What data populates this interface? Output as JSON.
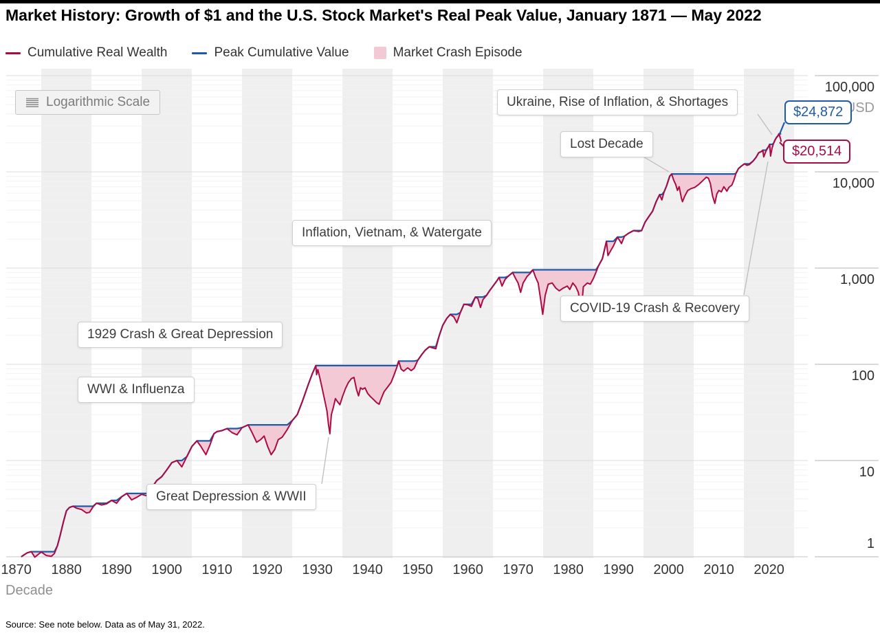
{
  "header": {
    "title": "Market History: Growth of $1 and the U.S. Stock Market's Real Peak Value, January 1871 — May 2022"
  },
  "legend": {
    "items": [
      {
        "label": "Cumulative Real Wealth",
        "swatch": "line",
        "color": "#ab0b45"
      },
      {
        "label": "Peak Cumulative Value",
        "swatch": "line",
        "color": "#1f5aa8"
      },
      {
        "label": "Market Crash Episode",
        "swatch": "area",
        "color": "#f3c9d5"
      }
    ]
  },
  "badge": {
    "label": "Logarithmic Scale"
  },
  "annotations": [
    {
      "id": "ukraine",
      "label": "Ukraine, Rise of Inflation, & Shortages"
    },
    {
      "id": "lost-decade",
      "label": "Lost Decade"
    },
    {
      "id": "inflation-vietnam",
      "label": "Inflation, Vietnam, & Watergate"
    },
    {
      "id": "covid",
      "label": "COVID-19 Crash & Recovery"
    },
    {
      "id": "crash-1929",
      "label": "1929 Crash & Great Depression"
    },
    {
      "id": "wwi-influenza",
      "label": "WWI & Influenza"
    },
    {
      "id": "depression-wwii",
      "label": "Great Depression & WWII"
    }
  ],
  "callouts": {
    "peak_value": "$24,872",
    "current_value": "$20,514"
  },
  "y_axis": {
    "unit": "USD",
    "tick_labels": [
      "100,000",
      "10,000",
      "1,000",
      "100",
      "10",
      "1"
    ]
  },
  "x_axis": {
    "label": "Decade",
    "tick_labels": [
      "1870",
      "1880",
      "1890",
      "1900",
      "1910",
      "1920",
      "1930",
      "1940",
      "1950",
      "1960",
      "1970",
      "1980",
      "1990",
      "2000",
      "2010",
      "2020"
    ]
  },
  "footer": {
    "source": "Source: See note below. Data as of May 31, 2022."
  },
  "colors": {
    "wealth_line": "#ab0b45",
    "peak_line": "#1f5aa8",
    "crash_fill": "#f3c9d5",
    "decade_band": "#efefef",
    "grid_major": "#dcdcdc",
    "grid_minor": "#f2f2f2",
    "right_tick": "#b5b5b5",
    "leader": "#bdbdbd"
  },
  "chart_data": {
    "type": "line",
    "title": "Market History: Growth of $1 and the U.S. Stock Market's Real Peak Value, January 1871 — May 2022",
    "x_label": "Decade",
    "x_ticks": [
      1870,
      1880,
      1890,
      1900,
      1910,
      1920,
      1930,
      1940,
      1950,
      1960,
      1970,
      1980,
      1990,
      2000,
      2010,
      2020
    ],
    "y_scale": "log",
    "y_unit": "USD",
    "y_ticks": [
      1,
      10,
      100,
      1000,
      10000,
      100000
    ],
    "x_range": [
      1871,
      2022.42
    ],
    "end_values": {
      "cumulative_real_wealth": 20514,
      "peak_cumulative_value": 24872
    },
    "event_labels": [
      "Ukraine, Rise of Inflation, & Shortages",
      "Lost Decade",
      "Inflation, Vietnam, & Watergate",
      "COVID-19 Crash & Recovery",
      "1929 Crash & Great Depression",
      "WWI & Influenza",
      "Great Depression & WWII"
    ],
    "shading": {
      "name": "Market Crash Episode",
      "definition": "area between running peak and wealth while wealth is below prior peak",
      "color": "#f3c9d5"
    },
    "series": [
      {
        "name": "Cumulative Real Wealth",
        "color": "#ab0b45",
        "x": [
          1871.0,
          1871.6,
          1872.2,
          1873.0,
          1873.7,
          1874.4,
          1875.0,
          1876.0,
          1877.0,
          1877.6,
          1878.2,
          1878.8,
          1879.4,
          1880.0,
          1880.6,
          1881.3,
          1882.0,
          1883.0,
          1884.0,
          1884.6,
          1885.3,
          1886.0,
          1887.0,
          1888.0,
          1889.0,
          1890.0,
          1891.0,
          1892.0,
          1893.0,
          1894.0,
          1895.0,
          1896.0,
          1897.0,
          1898.0,
          1899.0,
          1900.0,
          1901.0,
          1902.0,
          1903.0,
          1904.0,
          1905.0,
          1906.0,
          1906.8,
          1907.8,
          1908.6,
          1909.4,
          1910.0,
          1911.0,
          1912.0,
          1913.0,
          1914.0,
          1915.0,
          1916.2,
          1917.0,
          1917.9,
          1918.7,
          1919.4,
          1920.1,
          1920.8,
          1921.5,
          1922.2,
          1923.0,
          1924.0,
          1925.0,
          1926.0,
          1927.0,
          1928.2,
          1929.0,
          1929.7,
          1929.85,
          1930.1,
          1930.5,
          1930.9,
          1931.4,
          1931.9,
          1932.2,
          1932.5,
          1932.8,
          1933.2,
          1933.6,
          1934.0,
          1934.5,
          1935.0,
          1935.6,
          1936.2,
          1936.8,
          1937.3,
          1937.8,
          1938.2,
          1938.6,
          1939.0,
          1939.5,
          1940.0,
          1940.6,
          1941.2,
          1941.8,
          1942.3,
          1942.8,
          1943.3,
          1944.0,
          1944.7,
          1945.3,
          1945.9,
          1946.2,
          1946.7,
          1947.2,
          1948.0,
          1948.7,
          1949.3,
          1950.0,
          1950.8,
          1951.5,
          1952.3,
          1953.0,
          1953.6,
          1954.3,
          1955.0,
          1955.8,
          1956.5,
          1957.2,
          1957.8,
          1958.5,
          1959.2,
          1960.0,
          1960.7,
          1961.5,
          1962.0,
          1962.5,
          1963.0,
          1963.7,
          1964.4,
          1965.1,
          1965.8,
          1966.2,
          1966.8,
          1967.4,
          1968.0,
          1968.9,
          1969.5,
          1970.0,
          1970.5,
          1971.0,
          1971.8,
          1972.4,
          1972.95,
          1973.5,
          1974.0,
          1974.5,
          1974.9,
          1975.4,
          1976.0,
          1976.8,
          1977.5,
          1978.2,
          1979.0,
          1979.8,
          1980.3,
          1980.9,
          1981.5,
          1982.0,
          1982.6,
          1983.0,
          1983.8,
          1984.4,
          1985.0,
          1985.5,
          1986.0,
          1986.8,
          1987.6,
          1987.9,
          1988.4,
          1989.0,
          1989.8,
          1990.6,
          1991.2,
          1992.0,
          1993.0,
          1994.0,
          1994.6,
          1995.3,
          1996.0,
          1996.8,
          1997.5,
          1998.2,
          1998.65,
          1999.1,
          1999.6,
          2000.2,
          2000.6,
          2001.0,
          2001.4,
          2001.75,
          2002.1,
          2002.55,
          2002.75,
          2003.2,
          2003.8,
          2004.5,
          2005.2,
          2006.0,
          2006.8,
          2007.5,
          2007.9,
          2008.3,
          2008.75,
          2009.2,
          2009.6,
          2010.0,
          2010.5,
          2011.0,
          2011.6,
          2012.0,
          2012.6,
          2013.0,
          2013.4,
          2013.9,
          2014.5,
          2015.1,
          2015.6,
          2016.1,
          2016.8,
          2017.4,
          2017.95,
          2018.5,
          2018.75,
          2018.95,
          2019.4,
          2019.9,
          2020.12,
          2020.3,
          2020.6,
          2020.9,
          2021.2,
          2021.5,
          2021.75,
          2021.99,
          2022.15,
          2022.3,
          2022.42
        ],
        "values": [
          1.0,
          1.05,
          1.1,
          1.13,
          0.99,
          1.06,
          1.12,
          1.03,
          1.01,
          1.08,
          1.3,
          1.7,
          2.3,
          3.0,
          3.25,
          3.35,
          3.2,
          3.1,
          2.85,
          2.9,
          3.3,
          3.6,
          3.45,
          3.55,
          3.85,
          3.6,
          4.2,
          4.55,
          3.9,
          4.15,
          4.45,
          4.3,
          5.2,
          6.2,
          6.8,
          8.0,
          9.5,
          10.0,
          8.6,
          11.0,
          14.0,
          16.0,
          14.0,
          11.5,
          14.5,
          19.0,
          20.0,
          20.5,
          21.5,
          19.5,
          18.5,
          22.0,
          23.5,
          19.5,
          15.5,
          16.5,
          18.0,
          14.0,
          11.5,
          13.0,
          16.5,
          17.5,
          21.0,
          26.0,
          30.0,
          41.0,
          62.0,
          80.0,
          97.0,
          78.0,
          88.0,
          72.0,
          58.0,
          44.0,
          33.0,
          24.0,
          19.0,
          30.0,
          36.0,
          44.0,
          41.0,
          38.0,
          46.0,
          56.0,
          65.0,
          71.0,
          73.0,
          55.0,
          47.0,
          57.0,
          55.0,
          57.0,
          50.0,
          46.0,
          43.0,
          40.0,
          38.5,
          45.0,
          52.0,
          58.0,
          65.0,
          78.0,
          95.0,
          108.0,
          89.0,
          85.0,
          92.0,
          86.0,
          91.0,
          110.0,
          126.0,
          140.0,
          152.0,
          148.0,
          145.0,
          200.0,
          255.0,
          300.0,
          330.0,
          310.0,
          270.0,
          345.0,
          420.0,
          415.0,
          400.0,
          500.0,
          480.0,
          390.0,
          470.0,
          520.0,
          590.0,
          660.0,
          740.0,
          800.0,
          650.0,
          760.0,
          820.0,
          900.0,
          780.0,
          700.0,
          560.0,
          700.0,
          820.0,
          880.0,
          960.0,
          800.0,
          700.0,
          470.0,
          330.0,
          520.0,
          680.0,
          700.0,
          620.0,
          580.0,
          620.0,
          650.0,
          600.0,
          700.0,
          640.0,
          560.0,
          360.0,
          640.0,
          700.0,
          680.0,
          780.0,
          900.0,
          1050.0,
          1250.0,
          1900.0,
          1350.0,
          1500.0,
          1700.0,
          2100.0,
          1800.0,
          2150.0,
          2300.0,
          2450.0,
          2400.0,
          2450.0,
          3000.0,
          3400.0,
          3900.0,
          4900.0,
          5800.0,
          5100.0,
          6200.0,
          7200.0,
          9000.0,
          9500.0,
          8200.0,
          7400.0,
          6400.0,
          7000.0,
          5300.0,
          4900.0,
          5600.0,
          6400.0,
          6700.0,
          6900.0,
          7400.0,
          8100.0,
          8800.0,
          8600.0,
          7600.0,
          5600.0,
          4700.0,
          5900.0,
          6400.0,
          6200.0,
          7000.0,
          6300.0,
          6900.0,
          7300.0,
          8200.0,
          9600.0,
          10800.0,
          11500.0,
          12100.0,
          11700.0,
          11900.0,
          12900.0,
          14100.0,
          15800.0,
          16300.0,
          16800.0,
          14300.0,
          16500.0,
          18300.0,
          19300.0,
          14600.0,
          17600.0,
          19800.0,
          21500.0,
          22800.0,
          23600.0,
          24872.0,
          23200.0,
          22000.0,
          20514.0
        ]
      },
      {
        "name": "Peak Cumulative Value",
        "color": "#1f5aa8",
        "definition": "running maximum of Cumulative Real Wealth",
        "end_value": 24872
      }
    ]
  }
}
